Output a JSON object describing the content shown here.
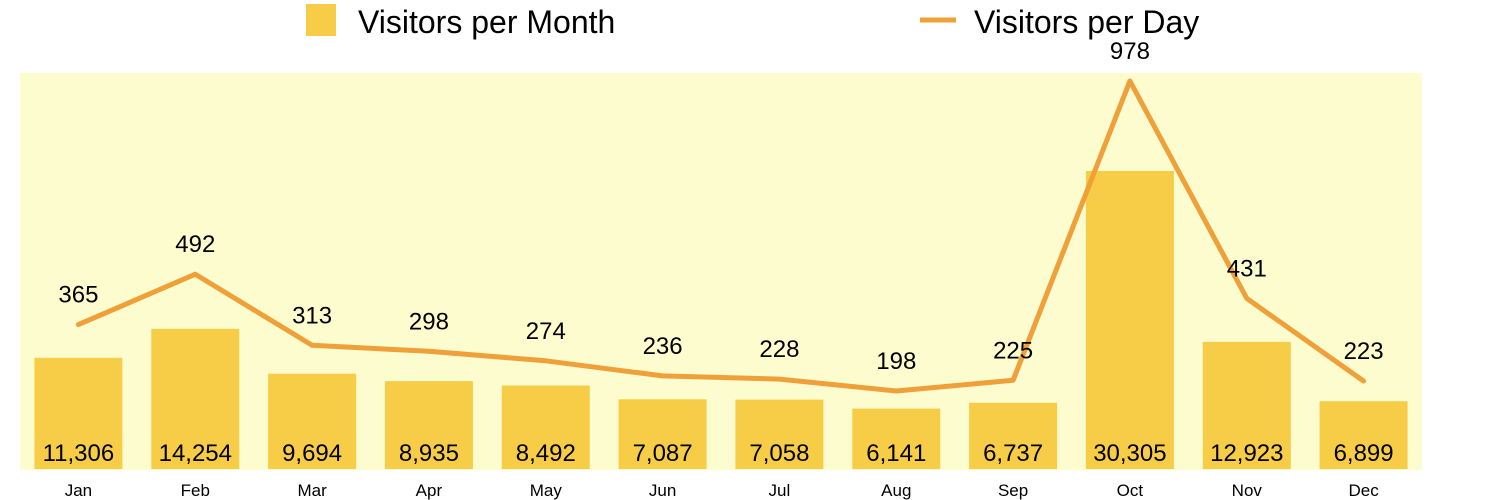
{
  "colors": {
    "bar": "#f7cd48",
    "line": "#f0a038",
    "plot_background": "#fdfccf"
  },
  "chart_data": {
    "type": "bar",
    "categories": [
      "Jan",
      "Feb",
      "Mar",
      "Apr",
      "May",
      "Jun",
      "Jul",
      "Aug",
      "Sep",
      "Oct",
      "Nov",
      "Dec"
    ],
    "series": [
      {
        "name": "Visitors per Month",
        "type": "bar",
        "values": [
          11306,
          14254,
          9694,
          8935,
          8492,
          7087,
          7058,
          6141,
          6737,
          30305,
          12923,
          6899
        ],
        "labels": [
          "11,306",
          "14,254",
          "9,694",
          "8,935",
          "8,492",
          "7,087",
          "7,058",
          "6,141",
          "6,737",
          "30,305",
          "12,923",
          "6,899"
        ]
      },
      {
        "name": "Visitors per Day",
        "type": "line",
        "values": [
          365,
          492,
          313,
          298,
          274,
          236,
          228,
          198,
          225,
          978,
          431,
          223
        ],
        "labels": [
          "365",
          "492",
          "313",
          "298",
          "274",
          "236",
          "228",
          "198",
          "225",
          "978",
          "431",
          "223"
        ]
      }
    ],
    "legend": "top-center",
    "grid": false,
    "title": "",
    "xlabel": "",
    "ylabel": ""
  }
}
